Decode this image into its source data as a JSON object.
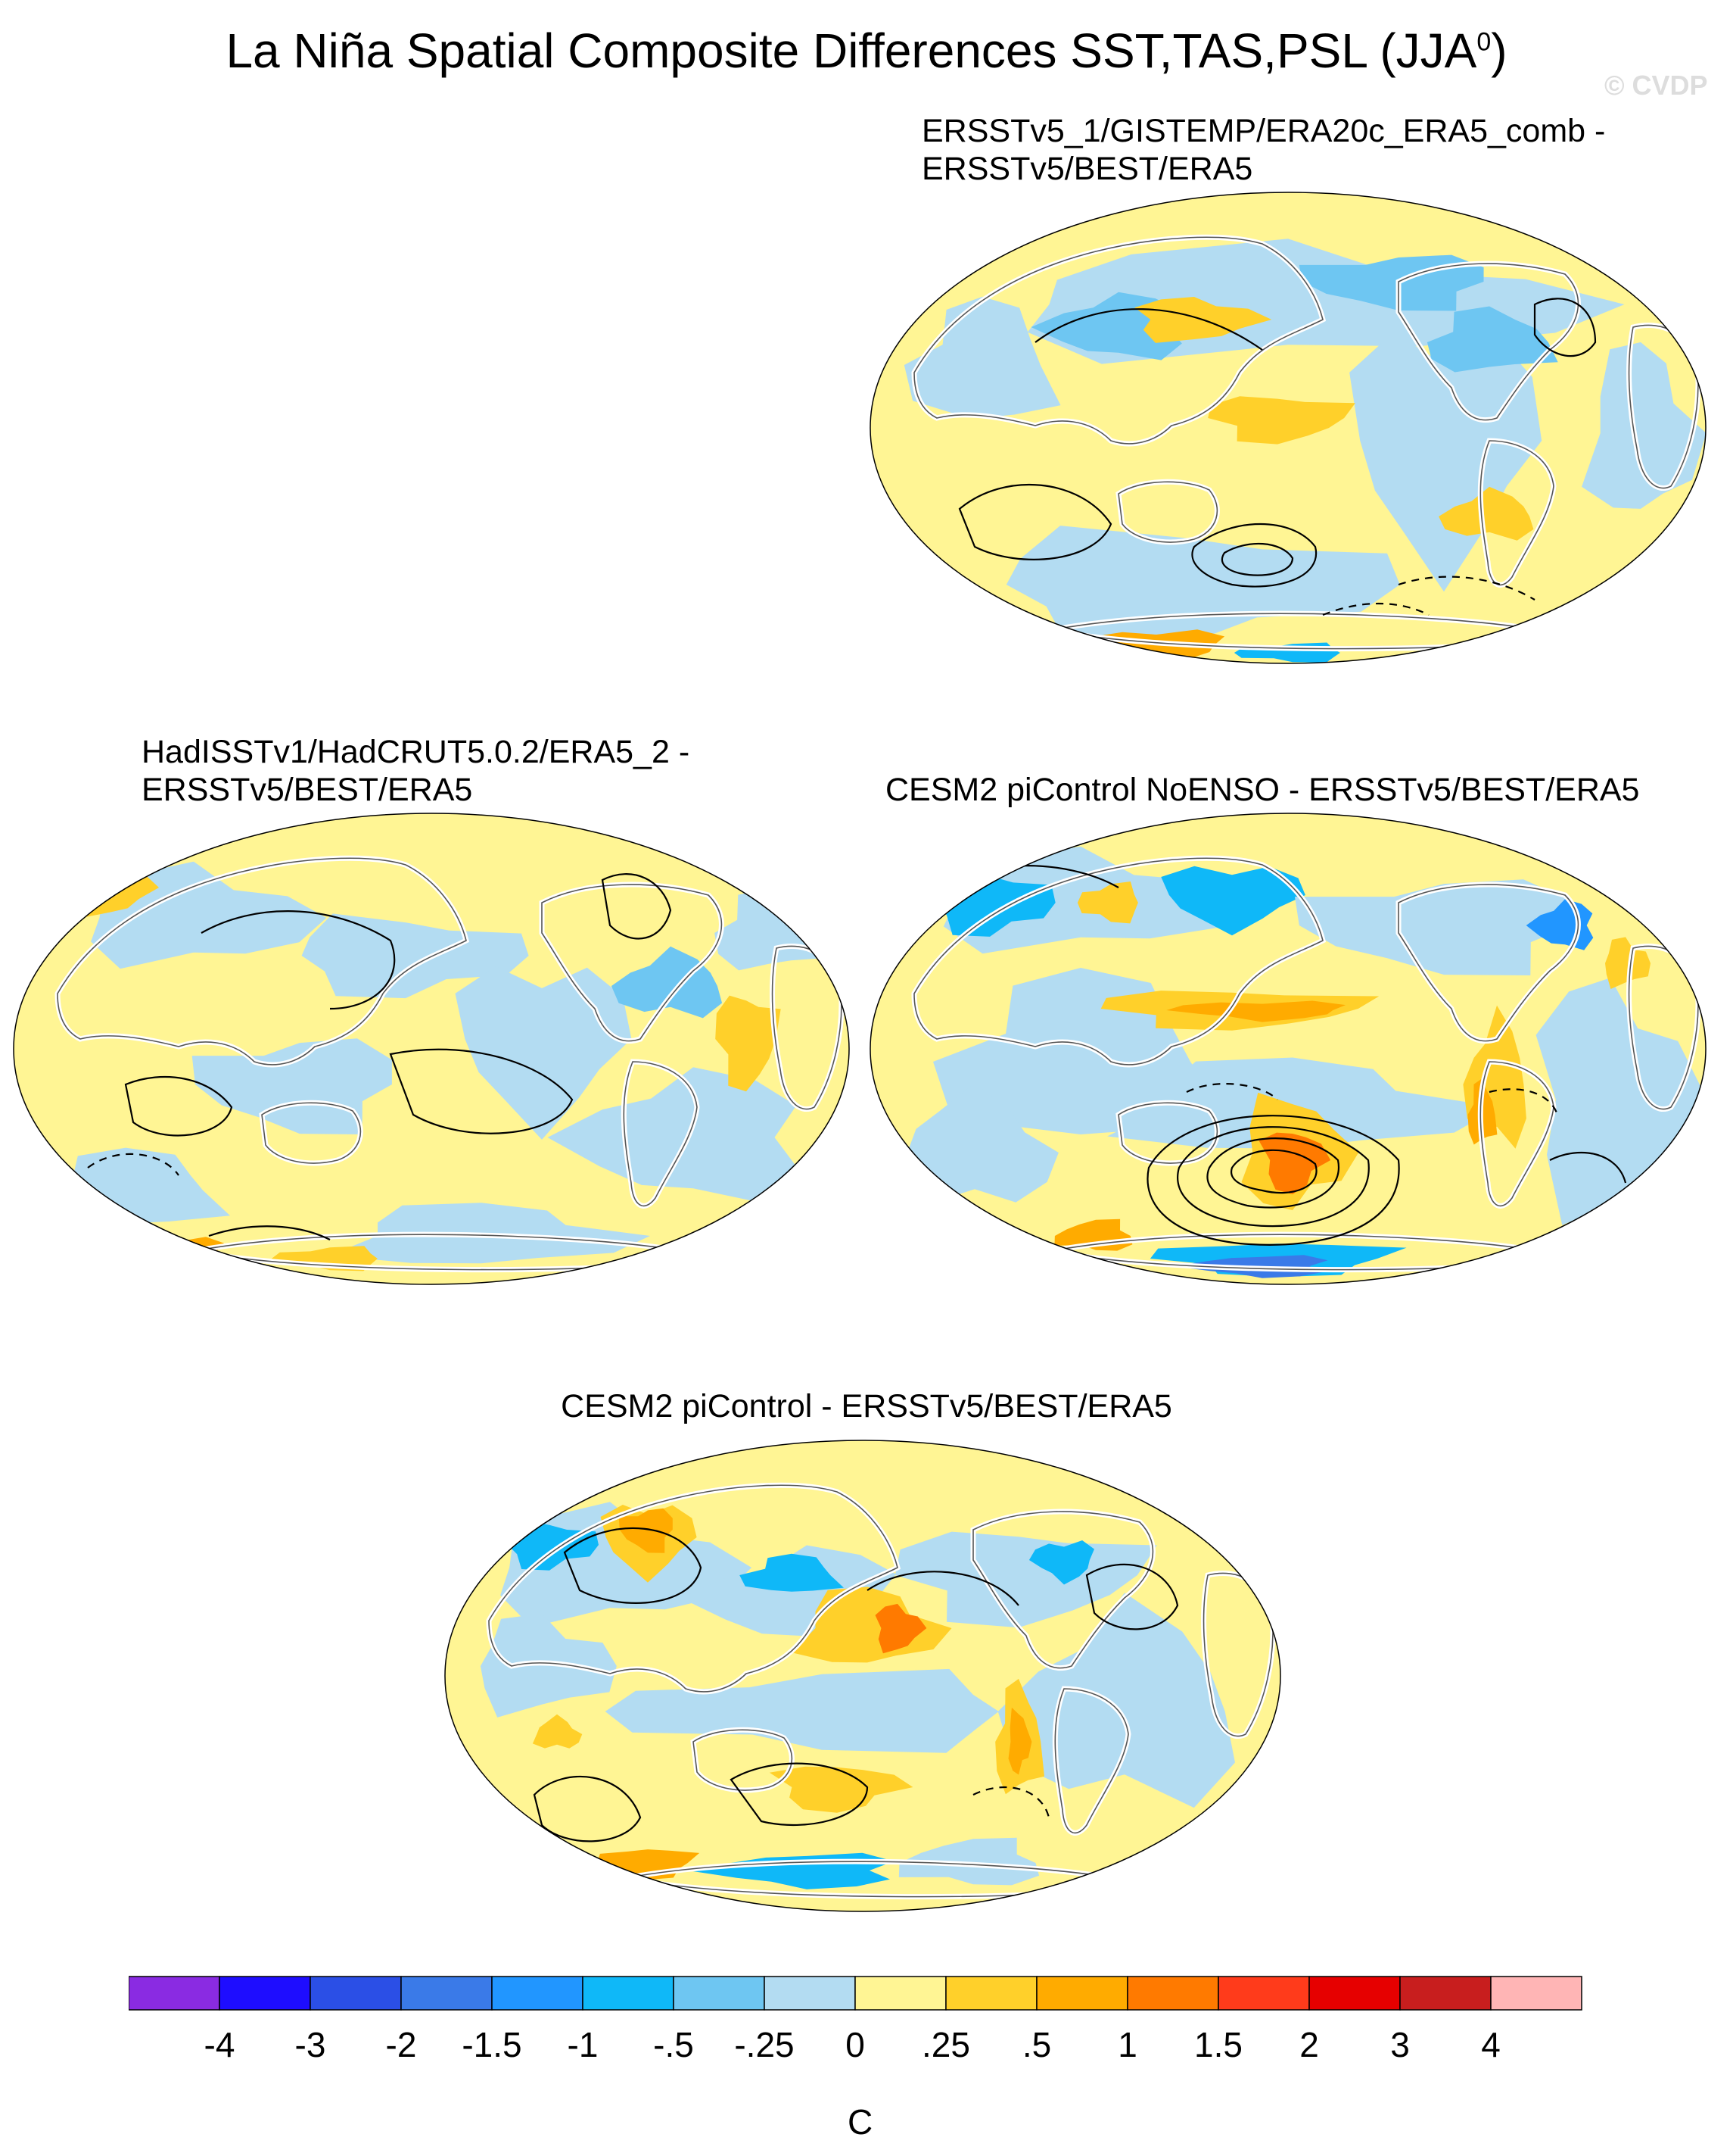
{
  "chart_data": {
    "type": "heatmap",
    "title": "La Niña Spatial Composite Differences SST,TAS,PSL (JJA",
    "title_superscript": "0",
    "title_suffix": ")",
    "watermark": "© CVDP",
    "projection": "Winkel tripel global maps centered on the Pacific",
    "fields": "SST / TAS shaded, PSL contours (solid positive, dashed negative)",
    "panels": [
      {
        "title_line1": "ERSSTv5_1/GISTEMP/ERA20c_ERA5_comb -",
        "title_line2": "ERSSTv5/BEST/ERA5"
      },
      {
        "title_line1": "HadISSTv1/HadCRUT5.0.2/ERA5_2 -",
        "title_line2": "ERSSTv5/BEST/ERA5"
      },
      {
        "title_line1": "CESM2 piControl NoENSO - ERSSTv5/BEST/ERA5",
        "title_line2": ""
      },
      {
        "title_line1": "CESM2 piControl - ERSSTv5/BEST/ERA5",
        "title_line2": ""
      }
    ],
    "colorbar": {
      "unit": "C",
      "tick_labels": [
        "-4",
        "-3",
        "-2",
        "-1.5",
        "-1",
        "-.5",
        "-.25",
        "0",
        ".25",
        ".5",
        "1",
        "1.5",
        "2",
        "3",
        "4"
      ],
      "colors": [
        "#8a2be2",
        "#1e0dff",
        "#2b4fe6",
        "#3a7ae8",
        "#2196ff",
        "#0fb8f8",
        "#6ec6f2",
        "#b3dcf2",
        "#fff594",
        "#ffd02a",
        "#ffab00",
        "#ff7a00",
        "#ff3b1b",
        "#e60000",
        "#c81e1e",
        "#ffb5b5"
      ]
    }
  }
}
